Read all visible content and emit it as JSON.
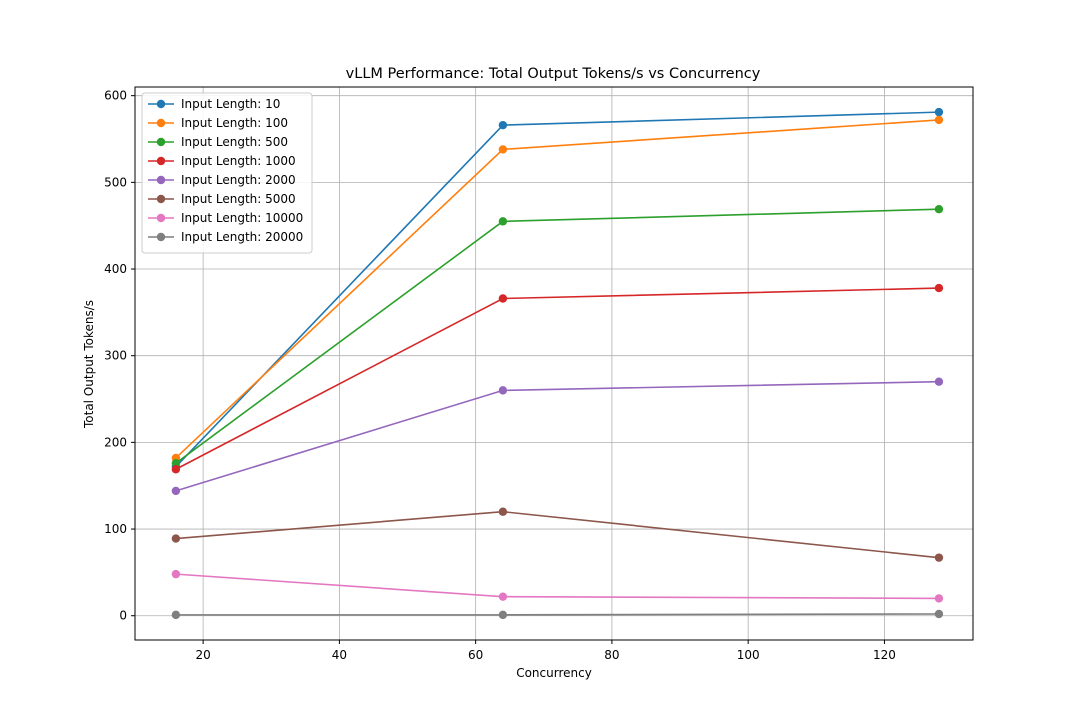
{
  "chart_data": {
    "type": "line",
    "title": "vLLM Performance: Total Output Tokens/s vs Concurrency",
    "xlabel": "Concurrency",
    "ylabel": "Total Output Tokens/s",
    "xlim": [
      10,
      133
    ],
    "ylim": [
      -28,
      610
    ],
    "xticks": [
      20,
      40,
      60,
      80,
      100,
      120
    ],
    "yticks": [
      0,
      100,
      200,
      300,
      400,
      500,
      600
    ],
    "grid": true,
    "legend_position": "upper-left",
    "x": [
      16,
      64,
      128
    ],
    "series": [
      {
        "name": "Input Length: 10",
        "color": "#1f77b4",
        "values": [
          172,
          566,
          581
        ]
      },
      {
        "name": "Input Length: 100",
        "color": "#ff7f0e",
        "values": [
          182,
          538,
          572
        ]
      },
      {
        "name": "Input Length: 500",
        "color": "#2ca02c",
        "values": [
          176,
          455,
          469
        ]
      },
      {
        "name": "Input Length: 1000",
        "color": "#d62728",
        "values": [
          169,
          366,
          378
        ]
      },
      {
        "name": "Input Length: 2000",
        "color": "#9467bd",
        "values": [
          144,
          260,
          270
        ]
      },
      {
        "name": "Input Length: 5000",
        "color": "#8c564b",
        "values": [
          89,
          120,
          67
        ]
      },
      {
        "name": "Input Length: 10000",
        "color": "#e377c2",
        "values": [
          48,
          22,
          20
        ]
      },
      {
        "name": "Input Length: 20000",
        "color": "#7f7f7f",
        "values": [
          1,
          1,
          2
        ]
      }
    ]
  }
}
